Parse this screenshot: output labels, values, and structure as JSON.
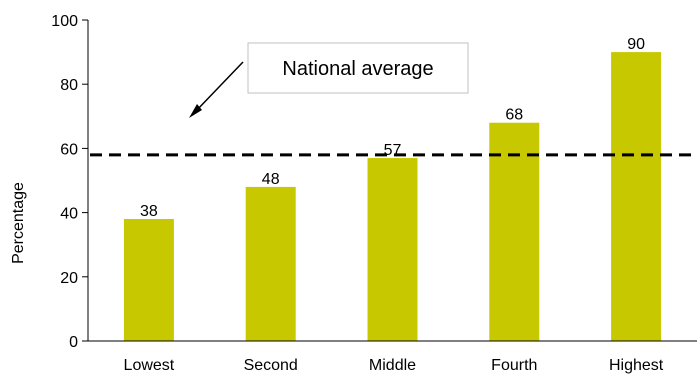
{
  "chart_data": {
    "type": "bar",
    "categories": [
      "Lowest",
      "Second",
      "Middle",
      "Fourth",
      "Highest"
    ],
    "values": [
      38,
      48,
      57,
      68,
      90
    ],
    "data_labels": [
      "38",
      "48",
      "57",
      "68",
      "90"
    ],
    "ylabel": "Percentage",
    "ylim": [
      0,
      100
    ],
    "yticks": [
      "0",
      "20",
      "40",
      "60",
      "80",
      "100"
    ],
    "reference_line": {
      "label": "National average",
      "value": 58,
      "style": "dashed"
    },
    "bar_color": "#c8c800",
    "grid": false,
    "legend": "none"
  }
}
